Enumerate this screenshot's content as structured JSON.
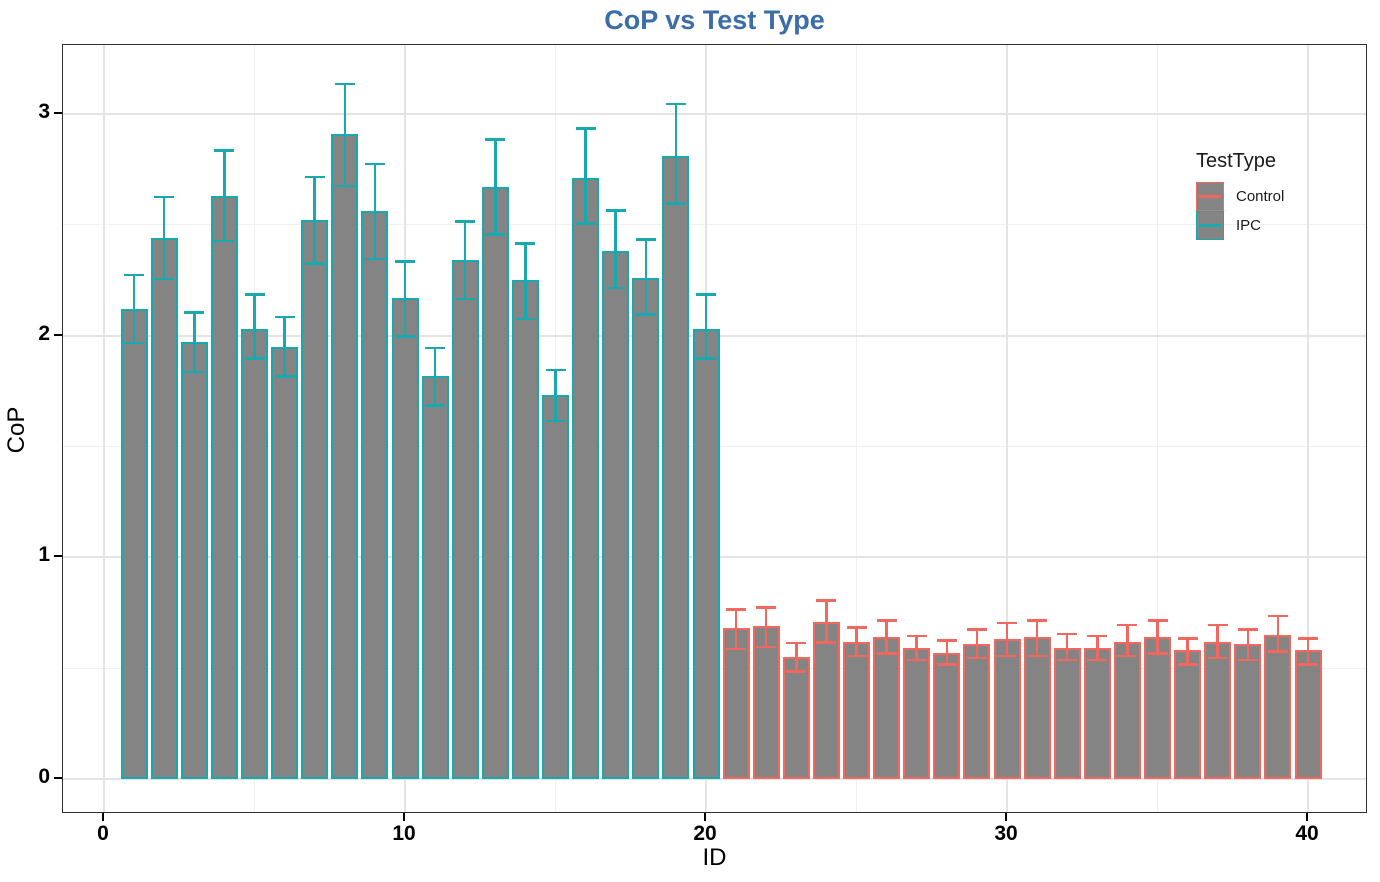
{
  "title": {
    "text": "CoP vs Test Type",
    "color": "#3B6DA6"
  },
  "axes": {
    "x": {
      "label": "ID",
      "ticks": [
        0,
        10,
        20,
        30,
        40
      ],
      "minor_ticks": [
        5,
        15,
        25,
        35
      ]
    },
    "y": {
      "label": "CoP",
      "ticks": [
        0,
        1,
        2,
        3
      ],
      "minor_ticks": [
        0.5,
        1.5,
        2.5
      ]
    }
  },
  "legend": {
    "title": "TestType",
    "items": [
      {
        "label": "Control",
        "color": "#F2685F"
      },
      {
        "label": "IPC",
        "color": "#17A9AE"
      }
    ]
  },
  "chart_data": {
    "type": "bar",
    "title": "CoP vs Test Type",
    "xlabel": "ID",
    "ylabel": "CoP",
    "xlim": [
      -1.4,
      42
    ],
    "ylim": [
      -0.16,
      3.31
    ],
    "grid": "major and minor, light gray on white, theme_bw panel with black border",
    "legend_position": "inside top-right",
    "bar_fill": "#848484",
    "bar_width": 0.9,
    "error_bars": "±CI with caps, colored by series",
    "series": [
      {
        "name": "IPC",
        "color": "#17A9AE",
        "ids": [
          1,
          2,
          3,
          4,
          5,
          6,
          7,
          8,
          9,
          10,
          11,
          12,
          13,
          14,
          15,
          16,
          17,
          18,
          19,
          20
        ],
        "values": [
          2.12,
          2.44,
          1.97,
          2.63,
          2.03,
          1.95,
          2.52,
          2.91,
          2.56,
          2.17,
          1.82,
          2.34,
          2.67,
          2.25,
          1.73,
          2.71,
          2.38,
          2.26,
          2.81,
          2.03
        ],
        "err_low": [
          1.96,
          2.25,
          1.83,
          2.42,
          1.89,
          1.81,
          2.32,
          2.67,
          2.34,
          1.99,
          1.68,
          2.16,
          2.45,
          2.07,
          1.61,
          2.5,
          2.21,
          2.09,
          2.59,
          1.89
        ],
        "err_high": [
          2.28,
          2.63,
          2.11,
          2.84,
          2.19,
          2.09,
          2.72,
          3.14,
          2.78,
          2.34,
          1.95,
          2.52,
          2.89,
          2.42,
          1.85,
          2.94,
          2.57,
          2.44,
          3.05,
          2.19
        ]
      },
      {
        "name": "Control",
        "color": "#F2685F",
        "ids": [
          21,
          22,
          23,
          24,
          25,
          26,
          27,
          28,
          29,
          30,
          31,
          32,
          33,
          34,
          35,
          36,
          37,
          38,
          39,
          40
        ],
        "values": [
          0.68,
          0.69,
          0.55,
          0.71,
          0.62,
          0.64,
          0.59,
          0.57,
          0.61,
          0.63,
          0.64,
          0.59,
          0.59,
          0.62,
          0.64,
          0.58,
          0.62,
          0.61,
          0.65,
          0.58
        ],
        "err_low": [
          0.58,
          0.59,
          0.48,
          0.61,
          0.55,
          0.56,
          0.53,
          0.51,
          0.54,
          0.55,
          0.55,
          0.53,
          0.53,
          0.55,
          0.56,
          0.51,
          0.54,
          0.53,
          0.57,
          0.51
        ],
        "err_high": [
          0.77,
          0.78,
          0.62,
          0.81,
          0.69,
          0.72,
          0.65,
          0.63,
          0.68,
          0.71,
          0.72,
          0.66,
          0.65,
          0.7,
          0.72,
          0.64,
          0.7,
          0.68,
          0.74,
          0.64
        ]
      }
    ]
  }
}
